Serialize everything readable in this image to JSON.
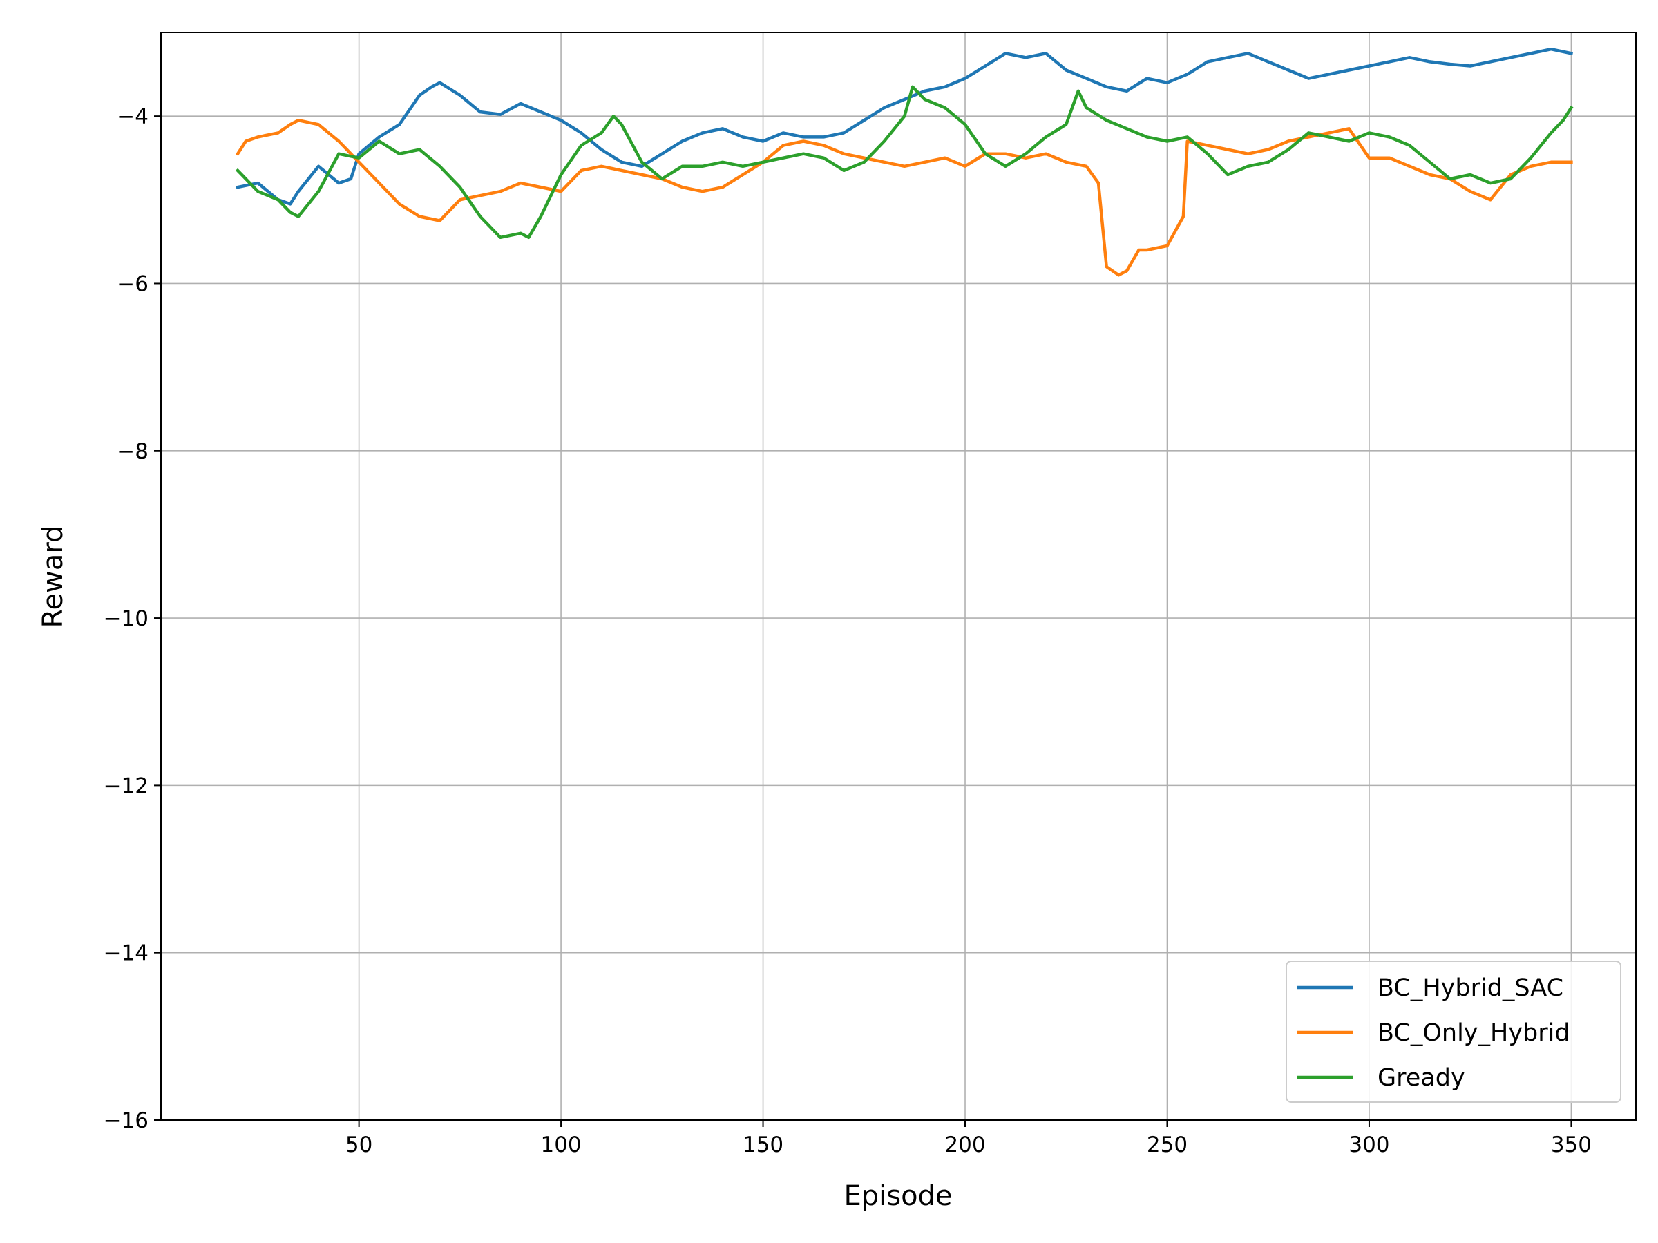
{
  "chart_data": {
    "type": "line",
    "title": "",
    "xlabel": "Episode",
    "ylabel": "Reward",
    "xlim": [
      1,
      366
    ],
    "ylim": [
      -16,
      -3.0
    ],
    "x_ticks": [
      50,
      100,
      150,
      200,
      250,
      300,
      350
    ],
    "y_ticks": [
      -16,
      -14,
      -12,
      -10,
      -8,
      -6,
      -4
    ],
    "y_tick_labels": [
      "−16",
      "−14",
      "−12",
      "−10",
      "−8",
      "−6",
      "−4"
    ],
    "grid": true,
    "legend_position": "lower-right",
    "series": [
      {
        "name": "BC_Hybrid_SAC",
        "color": "#1f77b4",
        "x": [
          20,
          25,
          30,
          33,
          35,
          40,
          45,
          48,
          50,
          55,
          60,
          65,
          68,
          70,
          75,
          80,
          85,
          90,
          95,
          100,
          105,
          110,
          115,
          120,
          125,
          130,
          135,
          140,
          145,
          150,
          155,
          160,
          165,
          170,
          175,
          180,
          185,
          190,
          195,
          200,
          205,
          210,
          215,
          220,
          225,
          230,
          235,
          240,
          245,
          250,
          255,
          260,
          265,
          270,
          275,
          280,
          285,
          290,
          295,
          300,
          305,
          310,
          315,
          320,
          325,
          330,
          335,
          340,
          345,
          350
        ],
        "values": [
          -4.85,
          -4.8,
          -5.0,
          -5.05,
          -4.9,
          -4.6,
          -4.8,
          -4.75,
          -4.45,
          -4.25,
          -4.1,
          -3.75,
          -3.65,
          -3.6,
          -3.75,
          -3.95,
          -3.98,
          -3.85,
          -3.95,
          -4.05,
          -4.2,
          -4.4,
          -4.55,
          -4.6,
          -4.45,
          -4.3,
          -4.2,
          -4.15,
          -4.25,
          -4.3,
          -4.2,
          -4.25,
          -4.25,
          -4.2,
          -4.05,
          -3.9,
          -3.8,
          -3.7,
          -3.65,
          -3.55,
          -3.4,
          -3.25,
          -3.3,
          -3.25,
          -3.45,
          -3.55,
          -3.65,
          -3.7,
          -3.55,
          -3.6,
          -3.5,
          -3.35,
          -3.3,
          -3.25,
          -3.35,
          -3.45,
          -3.55,
          -3.5,
          -3.45,
          -3.4,
          -3.35,
          -3.3,
          -3.35,
          -3.38,
          -3.4,
          -3.35,
          -3.3,
          -3.25,
          -3.2,
          -3.25
        ]
      },
      {
        "name": "BC_Only_Hybrid",
        "color": "#ff7f0e",
        "x": [
          20,
          22,
          25,
          30,
          33,
          35,
          40,
          45,
          50,
          55,
          60,
          65,
          70,
          75,
          80,
          85,
          90,
          95,
          100,
          105,
          110,
          115,
          120,
          125,
          130,
          135,
          140,
          145,
          150,
          155,
          160,
          165,
          170,
          175,
          180,
          185,
          190,
          195,
          200,
          205,
          210,
          215,
          220,
          225,
          230,
          233,
          235,
          238,
          240,
          243,
          245,
          250,
          254,
          255,
          260,
          265,
          270,
          275,
          280,
          285,
          290,
          295,
          300,
          305,
          310,
          315,
          320,
          325,
          330,
          335,
          340,
          345,
          350
        ],
        "values": [
          -4.45,
          -4.3,
          -4.25,
          -4.2,
          -4.1,
          -4.05,
          -4.1,
          -4.3,
          -4.55,
          -4.8,
          -5.05,
          -5.2,
          -5.25,
          -5.0,
          -4.95,
          -4.9,
          -4.8,
          -4.85,
          -4.9,
          -4.65,
          -4.6,
          -4.65,
          -4.7,
          -4.75,
          -4.85,
          -4.9,
          -4.85,
          -4.7,
          -4.55,
          -4.35,
          -4.3,
          -4.35,
          -4.45,
          -4.5,
          -4.55,
          -4.6,
          -4.55,
          -4.5,
          -4.6,
          -4.45,
          -4.45,
          -4.5,
          -4.45,
          -4.55,
          -4.6,
          -4.8,
          -5.8,
          -5.9,
          -5.85,
          -5.6,
          -5.6,
          -5.55,
          -5.2,
          -4.3,
          -4.35,
          -4.4,
          -4.45,
          -4.4,
          -4.3,
          -4.25,
          -4.2,
          -4.15,
          -4.5,
          -4.5,
          -4.6,
          -4.7,
          -4.75,
          -4.9,
          -5.0,
          -4.7,
          -4.6,
          -4.55,
          -4.55
        ]
      },
      {
        "name": "Gready",
        "color": "#2ca02c",
        "x": [
          20,
          25,
          30,
          33,
          35,
          40,
          45,
          50,
          55,
          60,
          65,
          70,
          75,
          80,
          85,
          90,
          92,
          95,
          100,
          105,
          110,
          113,
          115,
          120,
          125,
          130,
          135,
          140,
          145,
          150,
          155,
          160,
          165,
          170,
          175,
          180,
          185,
          187,
          190,
          195,
          200,
          205,
          210,
          215,
          220,
          225,
          228,
          230,
          235,
          240,
          245,
          250,
          255,
          260,
          265,
          270,
          275,
          280,
          285,
          290,
          295,
          300,
          305,
          310,
          315,
          320,
          325,
          330,
          335,
          340,
          345,
          348,
          350
        ],
        "values": [
          -4.65,
          -4.9,
          -5.0,
          -5.15,
          -5.2,
          -4.9,
          -4.45,
          -4.5,
          -4.3,
          -4.45,
          -4.4,
          -4.6,
          -4.85,
          -5.2,
          -5.45,
          -5.4,
          -5.45,
          -5.2,
          -4.7,
          -4.35,
          -4.2,
          -4.0,
          -4.1,
          -4.55,
          -4.75,
          -4.6,
          -4.6,
          -4.55,
          -4.6,
          -4.55,
          -4.5,
          -4.45,
          -4.5,
          -4.65,
          -4.55,
          -4.3,
          -4.0,
          -3.65,
          -3.8,
          -3.9,
          -4.1,
          -4.45,
          -4.6,
          -4.45,
          -4.25,
          -4.1,
          -3.7,
          -3.9,
          -4.05,
          -4.15,
          -4.25,
          -4.3,
          -4.25,
          -4.45,
          -4.7,
          -4.6,
          -4.55,
          -4.4,
          -4.2,
          -4.25,
          -4.3,
          -4.2,
          -4.25,
          -4.35,
          -4.55,
          -4.75,
          -4.7,
          -4.8,
          -4.75,
          -4.5,
          -4.2,
          -4.05,
          -3.9
        ]
      }
    ]
  }
}
